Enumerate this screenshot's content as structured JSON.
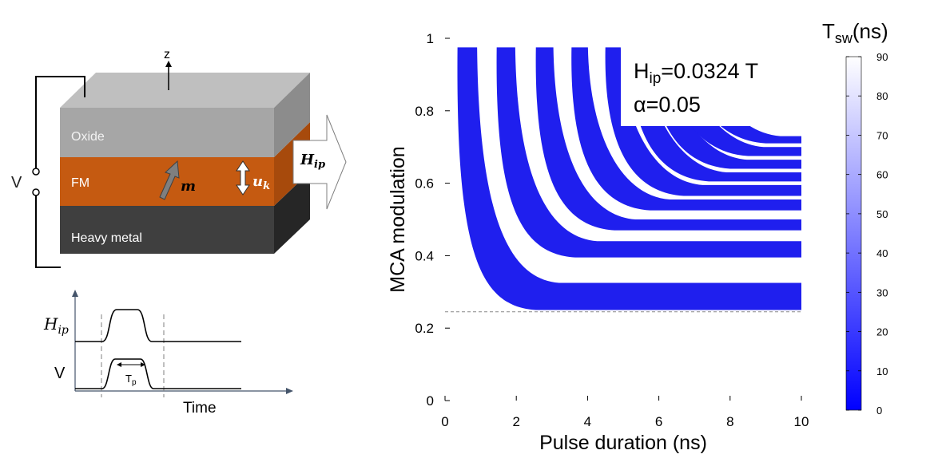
{
  "schematic": {
    "axis_label": "z",
    "voltage_label": "V",
    "layers": {
      "top": "Oxide",
      "middle": "FM",
      "bottom": "Heavy metal"
    },
    "magnetization_label": "m",
    "anisotropy_label": "u",
    "anisotropy_subscript": "k",
    "field_label": "H",
    "field_subscript": "ip",
    "colors": {
      "oxide": "#bfbfbf",
      "fm": "#c55a11",
      "heavy_metal": "#3f3f3f"
    }
  },
  "timing_diagram": {
    "field_label": "H",
    "field_subscript": "ip",
    "voltage_label": "V",
    "pulse_label": "T",
    "pulse_subscript": "p",
    "time_label": "Time"
  },
  "chart_data": {
    "type": "heatmap",
    "xlabel": "Pulse duration (ns)",
    "ylabel": "MCA modulation",
    "xlim": [
      0,
      10
    ],
    "ylim": [
      0,
      1
    ],
    "x_ticks": [
      0,
      2,
      4,
      6,
      8,
      10
    ],
    "y_ticks": [
      0,
      0.2,
      0.4,
      0.6,
      0.8,
      1
    ],
    "threshold_line_y": 0.245,
    "annotation_lines": [
      {
        "label": "H",
        "sub": "ip",
        "value": "=0.0324 T"
      },
      {
        "label": "α",
        "sub": "",
        "value": "=0.05"
      }
    ],
    "switching_bands": [
      {
        "y_start": 0.25,
        "y_end": 0.325,
        "x_start": 0.35
      },
      {
        "y_start": 0.395,
        "y_end": 0.44,
        "x_start": 1.45
      },
      {
        "y_start": 0.47,
        "y_end": 0.5,
        "x_start": 2.55
      },
      {
        "y_start": 0.525,
        "y_end": 0.555,
        "x_start": 3.55
      },
      {
        "y_start": 0.565,
        "y_end": 0.595,
        "x_start": 4.5
      },
      {
        "y_start": 0.605,
        "y_end": 0.63,
        "x_start": 5.2
      },
      {
        "y_start": 0.64,
        "y_end": 0.665,
        "x_start": 5.8
      },
      {
        "y_start": 0.675,
        "y_end": 0.7,
        "x_start": 6.3
      },
      {
        "y_start": 0.71,
        "y_end": 0.73,
        "x_start": 6.8
      }
    ],
    "colorbar": {
      "title": "T",
      "title_sub": "sw",
      "title_unit": "(ns)",
      "range": [
        0,
        90
      ],
      "ticks": [
        0,
        10,
        20,
        30,
        40,
        50,
        60,
        70,
        80,
        90
      ],
      "color_low": "#0000ff",
      "color_high": "#ffffff"
    },
    "band_color": "#1f1fee",
    "grid": false
  }
}
